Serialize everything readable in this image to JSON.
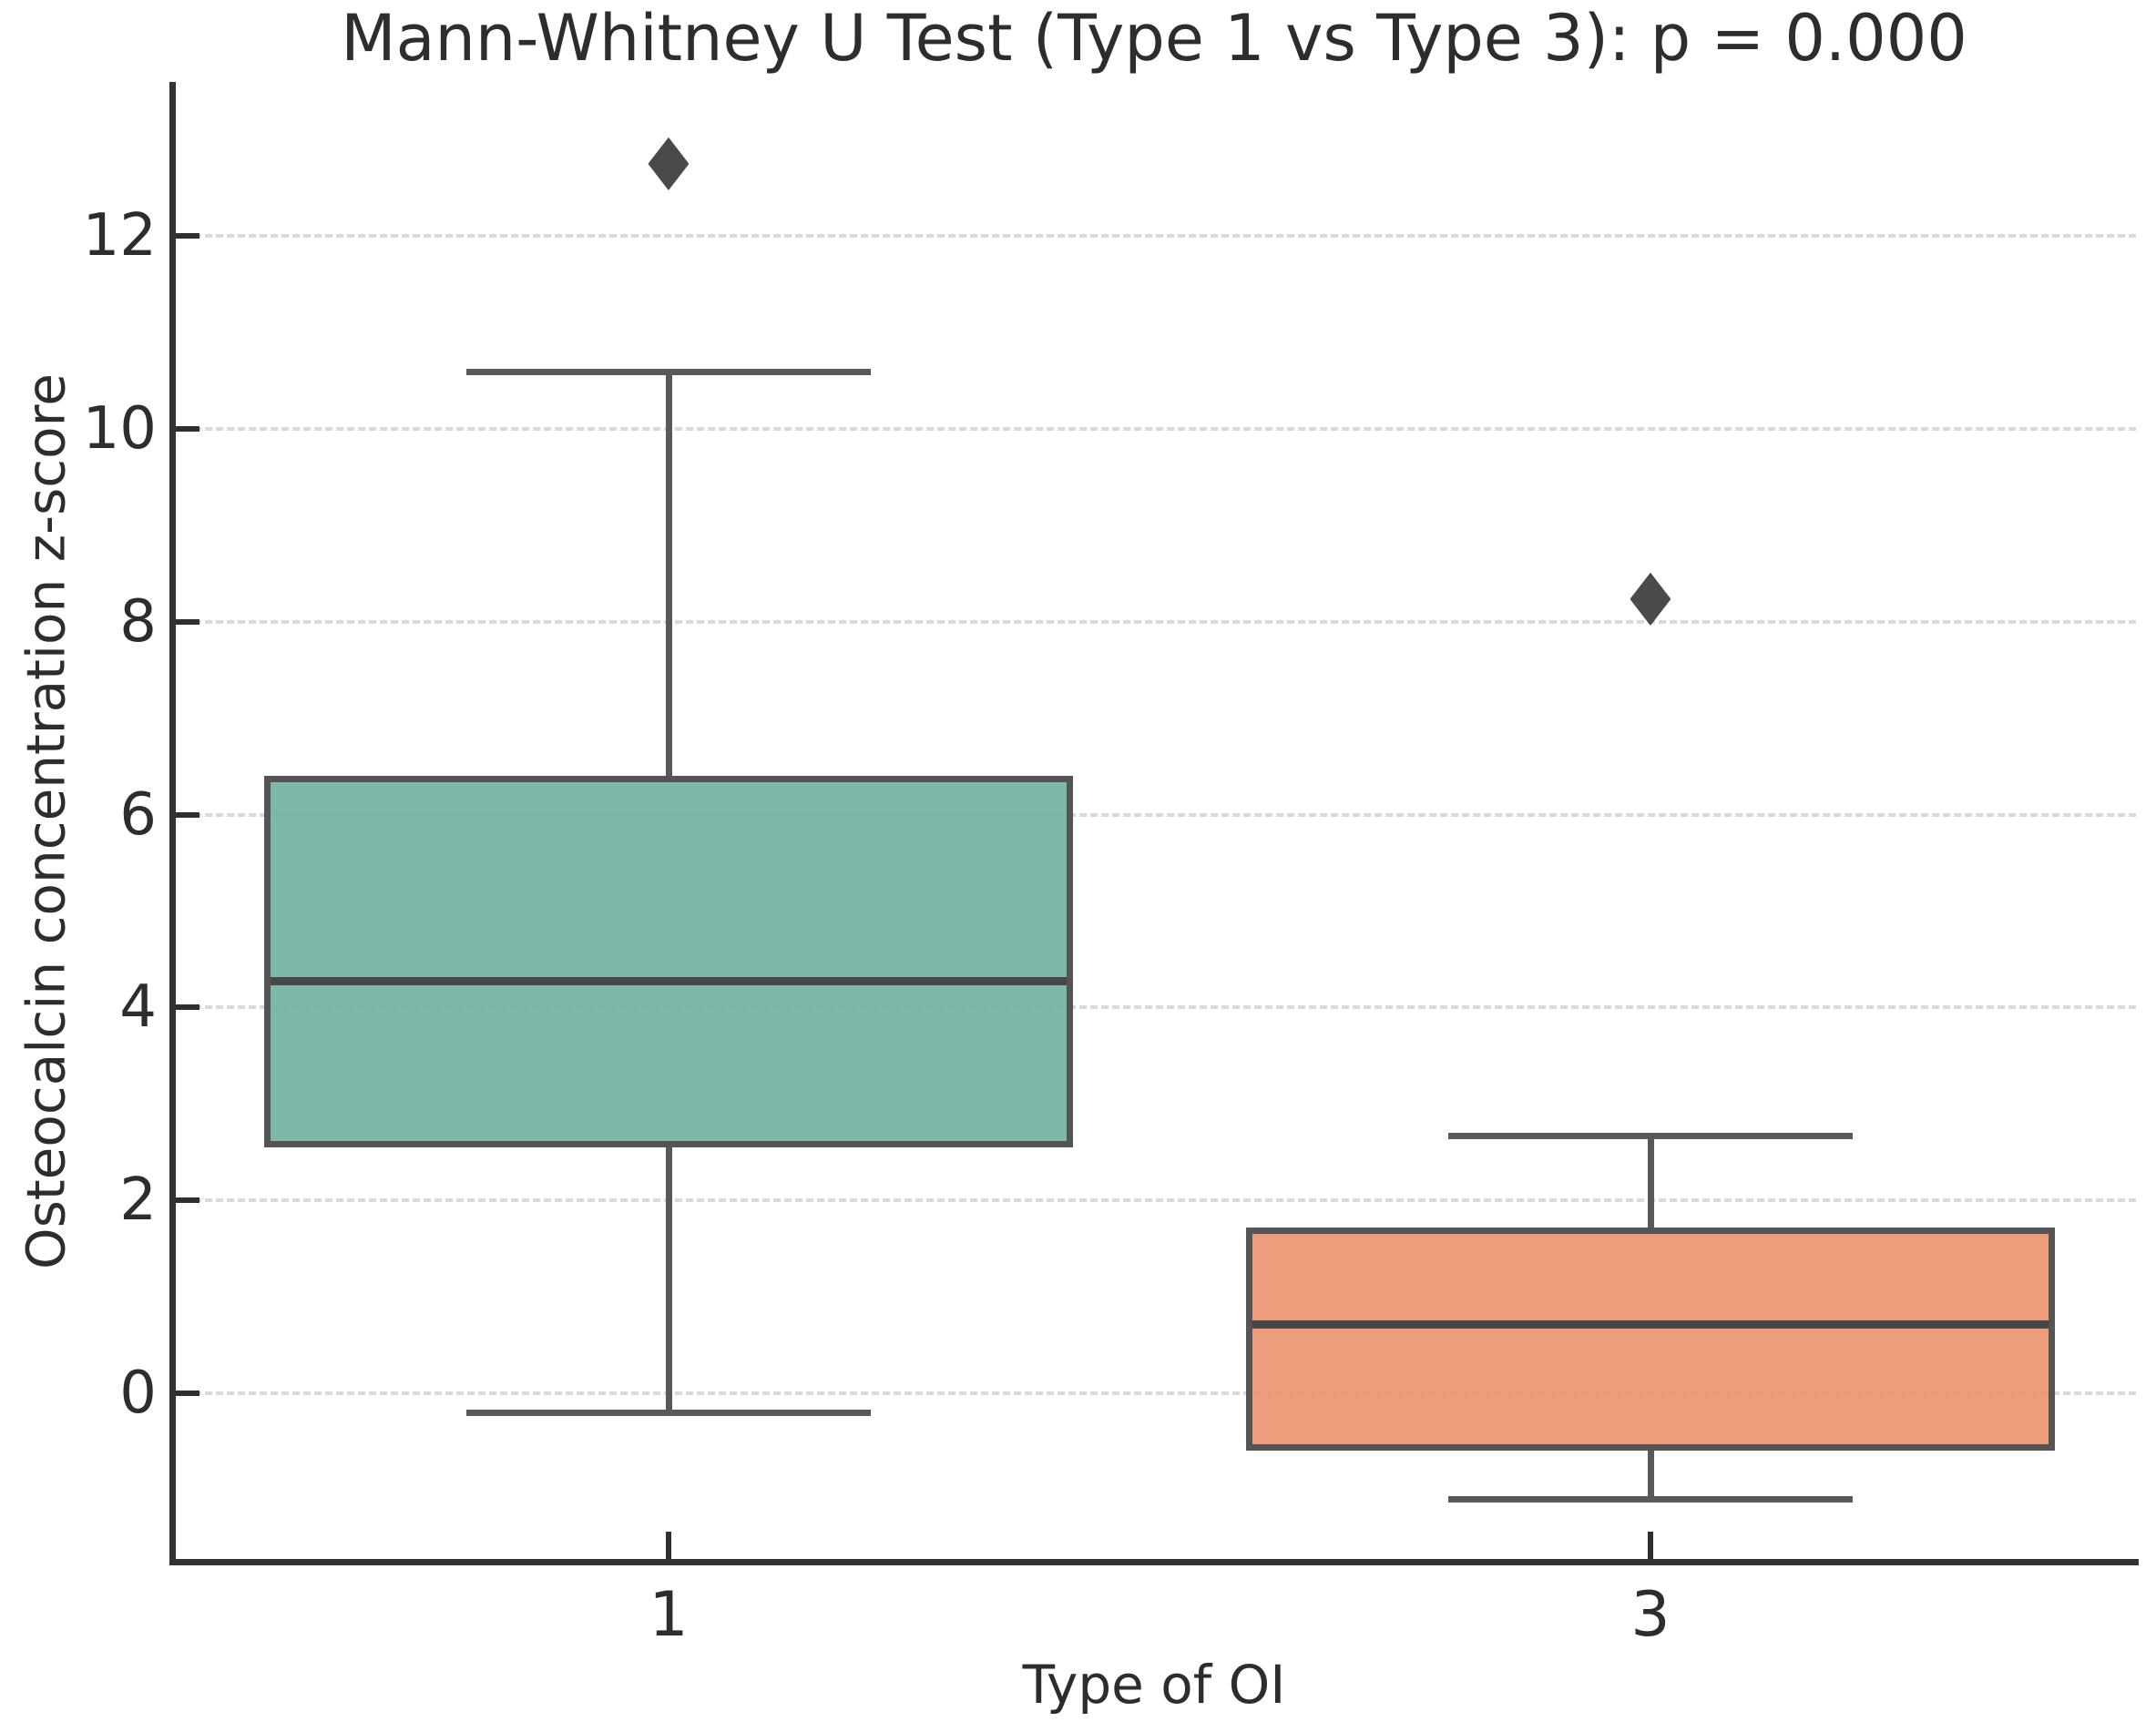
{
  "chart_data": {
    "type": "box",
    "title": "Mann-Whitney U Test (Type 1 vs Type 3): p = 0.000",
    "xlabel": "Type of OI",
    "ylabel": "Osteocalcin concentration z-score",
    "categories": [
      "1",
      "3"
    ],
    "yticks": [
      "12",
      "10",
      "8",
      "6",
      "4",
      "2",
      "0"
    ],
    "ytick_values": [
      12,
      10,
      8,
      6,
      4,
      2,
      0
    ],
    "ylim": [
      -1.75,
      13.6
    ],
    "grid": "horizontal dashed",
    "legend_position": "none",
    "outlier_marker_shape": "diamond",
    "boxes": [
      {
        "category": "1",
        "name": "Type 1",
        "fill_color": "#72b2a0",
        "whisker_low": -0.2,
        "q1": 2.55,
        "median": 4.28,
        "q3": 6.4,
        "whisker_high": 10.6,
        "outliers": [
          12.73
        ]
      },
      {
        "category": "3",
        "name": "Type 3",
        "fill_color": "#ec9572",
        "whisker_low": -1.1,
        "q1": -0.6,
        "median": 0.72,
        "q3": 1.72,
        "whisker_high": 2.67,
        "outliers": [
          8.22
        ]
      }
    ],
    "colors": {
      "box_edge": "#545454",
      "median_line": "#474747",
      "whisker": "#595959",
      "outlier_marker": "#4a4a4a",
      "gridline": "#d9d9d9",
      "axis_spine": "#333333",
      "text": "#2d2d2d",
      "background": "#ffffff"
    }
  }
}
